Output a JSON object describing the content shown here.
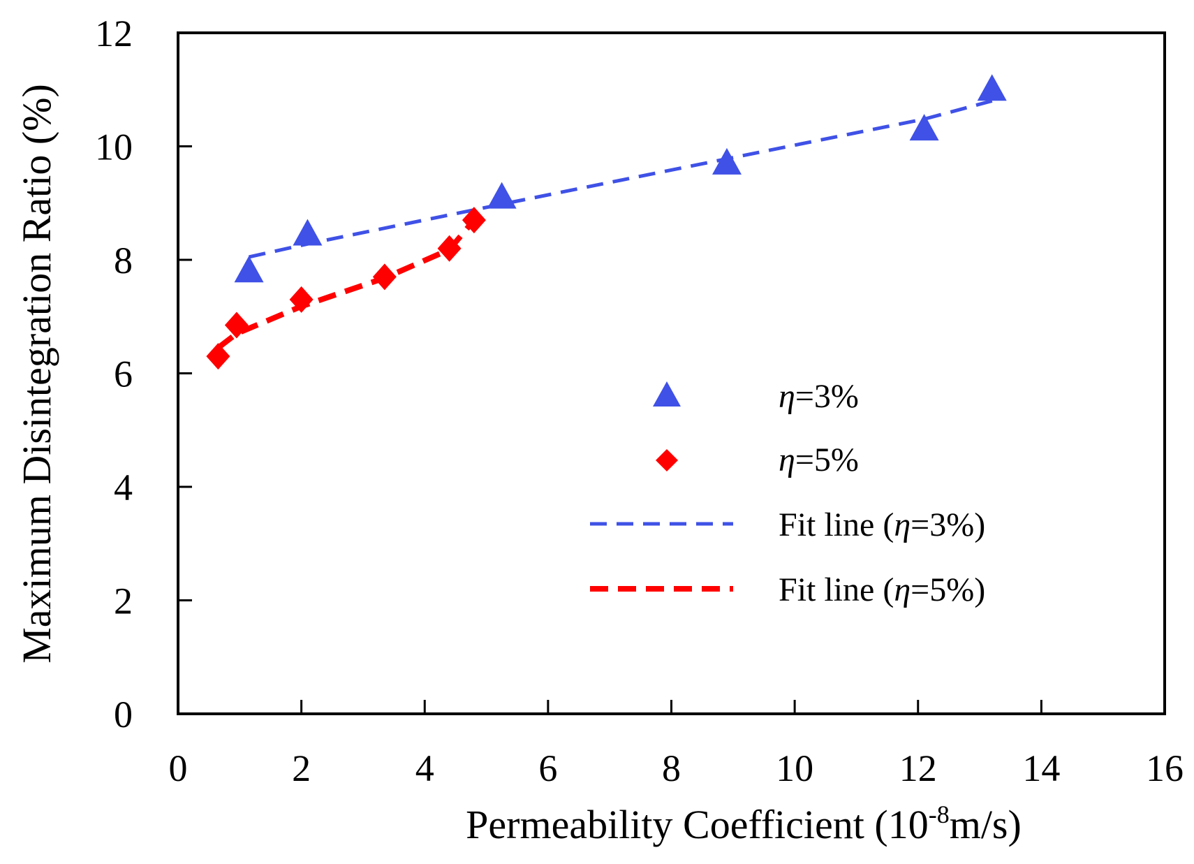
{
  "chart_data": {
    "type": "scatter",
    "xlabel": "Permeability Coefficient (10",
    "xlabel_sup": "-8",
    "xlabel_suffix": "m/s)",
    "ylabel": "Maximum Disintegration Ratio (%)",
    "xlim": [
      0,
      16
    ],
    "ylim": [
      0,
      12
    ],
    "xticks": [
      0,
      2,
      4,
      6,
      8,
      10,
      12,
      14,
      16
    ],
    "yticks": [
      0,
      2,
      4,
      6,
      8,
      10,
      12
    ],
    "grid": false,
    "legend_position": "center-right",
    "series": [
      {
        "name": "η=3%",
        "eta_symbol": "η",
        "label_rest": "=3%",
        "marker": "triangle",
        "color": "#3f51e6",
        "x": [
          1.15,
          2.1,
          5.25,
          8.9,
          12.1,
          13.2
        ],
        "y": [
          7.8,
          8.45,
          9.1,
          9.7,
          10.3,
          11.0
        ]
      },
      {
        "name": "η=5%",
        "eta_symbol": "η",
        "label_rest": "=5%",
        "marker": "diamond",
        "color": "#ff0000",
        "x": [
          0.65,
          0.95,
          2.0,
          3.35,
          4.4,
          4.8
        ],
        "y": [
          6.3,
          6.85,
          7.3,
          7.7,
          8.2,
          8.7
        ]
      },
      {
        "name": "Fit line (η=3%)",
        "prefix": "Fit line (",
        "eta_symbol": "η",
        "label_rest": "=3%)",
        "style": "dashed",
        "color": "#3f51e6",
        "x": [
          1.15,
          2.1,
          5.25,
          8.9,
          12.1,
          13.2
        ],
        "y": [
          8.05,
          8.28,
          8.98,
          9.78,
          10.48,
          10.8
        ]
      },
      {
        "name": "Fit line (η=5%)",
        "prefix": "Fit line (",
        "eta_symbol": "η",
        "label_rest": "=5%)",
        "style": "dashed",
        "color": "#ff0000",
        "x": [
          0.65,
          0.95,
          2.0,
          3.35,
          4.4,
          4.8
        ],
        "y": [
          6.45,
          6.7,
          7.18,
          7.68,
          8.18,
          8.7
        ]
      }
    ]
  }
}
